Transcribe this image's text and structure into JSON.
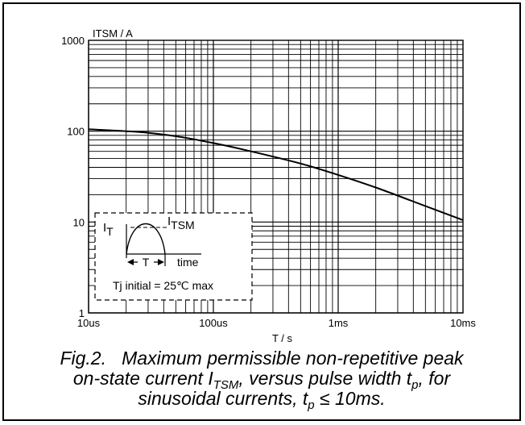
{
  "chart_data": {
    "type": "line",
    "x_scale": "log",
    "y_scale": "log",
    "ylabel": "ITSM / A",
    "xlabel": "T / s",
    "x_ticks": [
      {
        "value": 1e-05,
        "label": "10us"
      },
      {
        "value": 0.0001,
        "label": "100us"
      },
      {
        "value": 0.001,
        "label": "1ms"
      },
      {
        "value": 0.01,
        "label": "10ms"
      }
    ],
    "y_ticks": [
      {
        "value": 1,
        "label": "1"
      },
      {
        "value": 10,
        "label": "10"
      },
      {
        "value": 100,
        "label": "100"
      },
      {
        "value": 1000,
        "label": "1000"
      }
    ],
    "xlim": [
      1e-05,
      0.01
    ],
    "ylim": [
      1,
      1000
    ],
    "grid": true,
    "series": [
      {
        "x": [
          1e-05,
          2e-05,
          3e-05,
          5e-05,
          0.0001,
          0.0002,
          0.0005,
          0.001,
          0.002,
          0.005,
          0.01
        ],
        "y": [
          105,
          100,
          96,
          88,
          74,
          60,
          44,
          33,
          24,
          15,
          10.5
        ]
      }
    ],
    "inset": {
      "label_it": "I",
      "label_it_sub": "T",
      "label_itsm": "I",
      "label_itsm_sub": "TSM",
      "period_label": "T",
      "time_label": "time",
      "note": "Tj initial = 25℃ max"
    }
  },
  "caption": {
    "line1": "Fig.2.   Maximum permissible non-repetitive peak",
    "line2_a": "on-state current I",
    "line2_sub1": "TSM",
    "line2_b": ", versus pulse width t",
    "line2_sub2": "p",
    "line2_c": ", for",
    "line3_a": "sinusoidal currents, t",
    "line3_sub": "p",
    "line3_b": " ≤ 10ms."
  }
}
